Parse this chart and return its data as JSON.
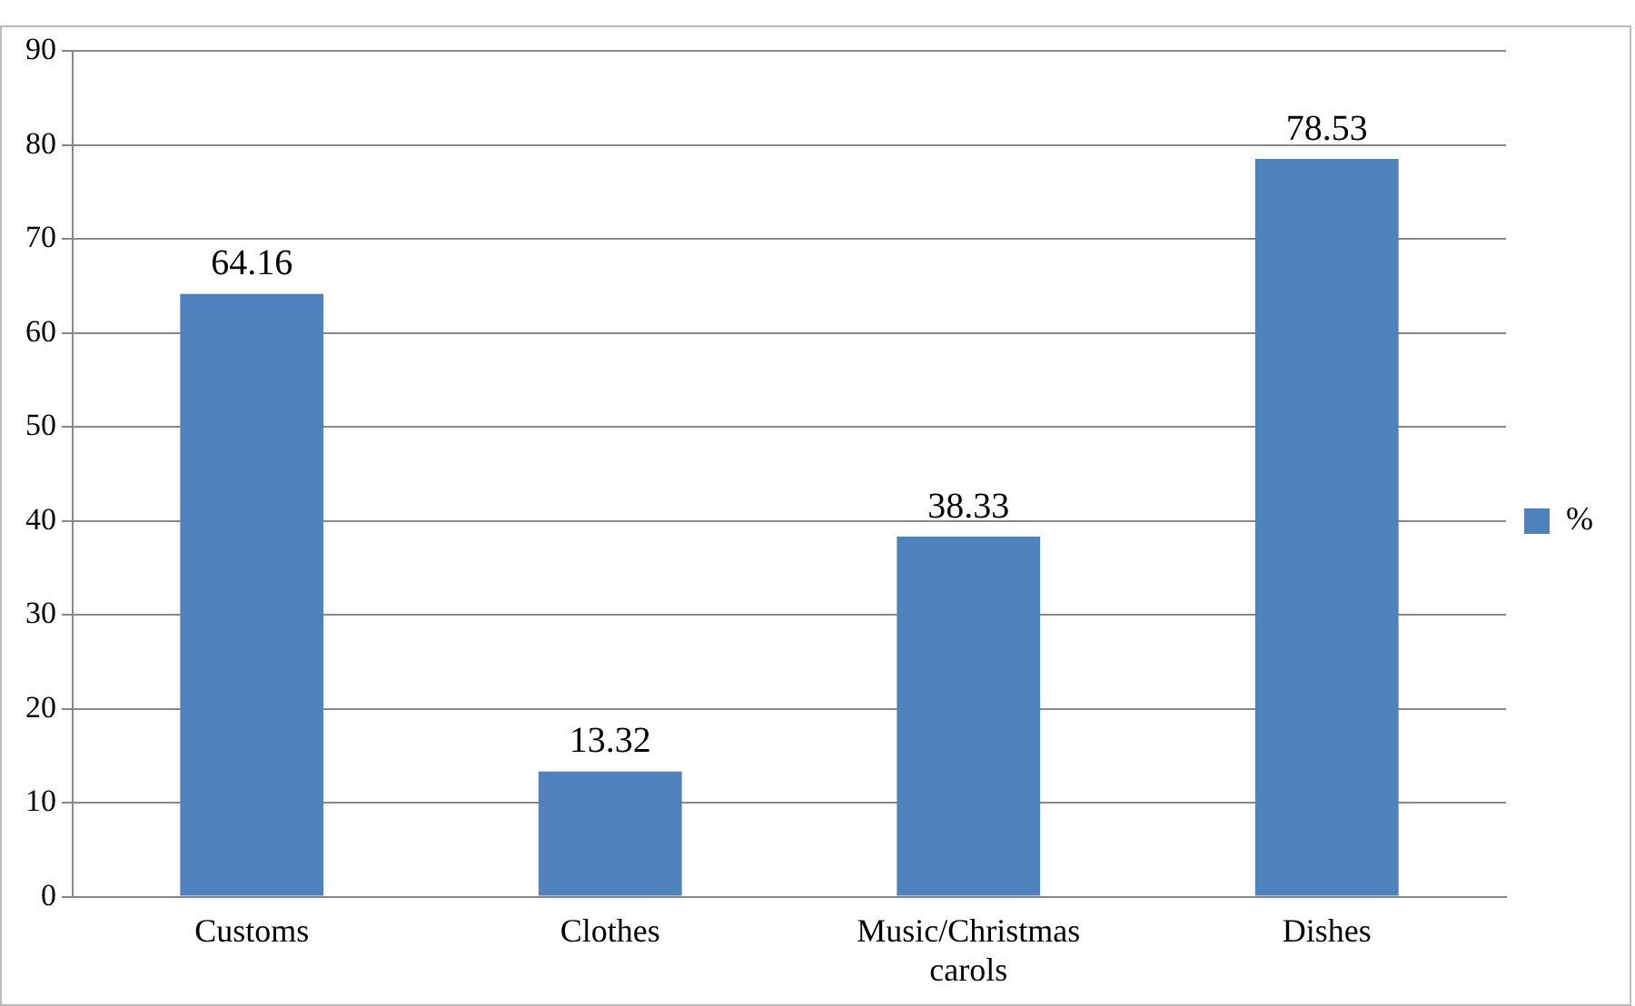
{
  "chart_data": {
    "type": "bar",
    "categories": [
      "Customs",
      "Clothes",
      "Music/Christmas carols",
      "Dishes"
    ],
    "series": [
      {
        "name": "%",
        "color": "#4f81bd",
        "values": [
          64.16,
          13.32,
          38.33,
          78.53
        ]
      }
    ],
    "ylim": [
      0,
      90
    ],
    "yticks": [
      0,
      10,
      20,
      30,
      40,
      50,
      60,
      70,
      80,
      90
    ],
    "grid": "y",
    "legend": "right",
    "data_labels": true
  }
}
